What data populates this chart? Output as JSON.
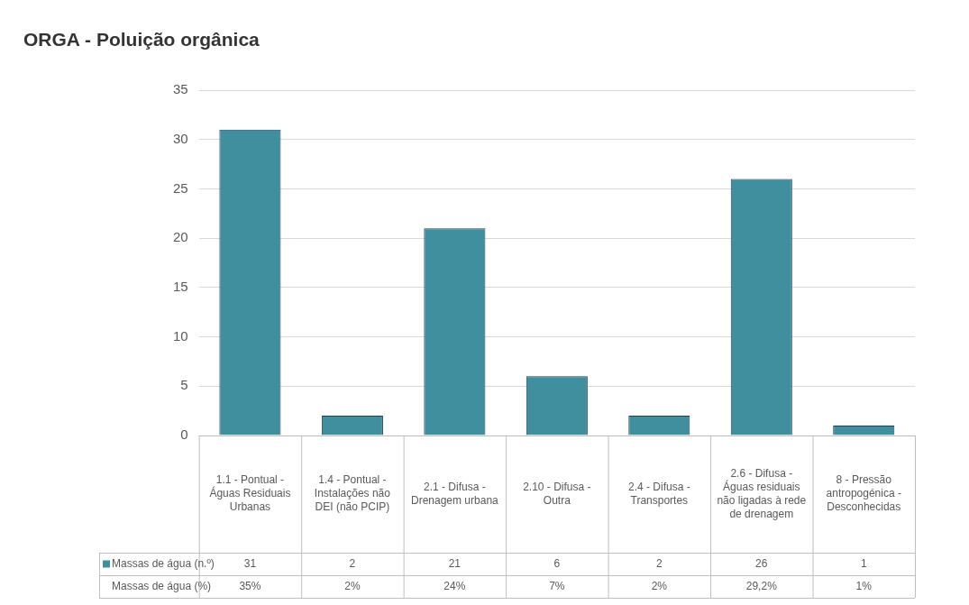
{
  "chart_data": {
    "type": "bar",
    "title": "ORGA - Poluição orgânica",
    "categories": [
      "1.1 - Pontual - Águas Residuais Urbanas",
      "1.4 - Pontual - Instalações não DEI (não PCIP)",
      "2.1 - Difusa - Drenagem urbana",
      "2.10 - Difusa - Outra",
      "2.4 - Difusa - Transportes",
      "2.6 - Difusa - Águas residuais não ligadas à rede de drenagem",
      "8 - Pressão antropogénica - Desconhecidas"
    ],
    "series": [
      {
        "name": "Massas de água (n.º)",
        "color": "#3f8f9f",
        "values": [
          31,
          2,
          21,
          6,
          2,
          26,
          1
        ]
      }
    ],
    "value_labels": [
      "35%",
      "2%",
      "24%",
      "7%",
      "2%",
      "29,2%",
      "1%"
    ],
    "annotations": [
      "Massas de água (%)"
    ],
    "data_labels": true,
    "ylim": [
      0,
      35
    ],
    "yticks": [
      0,
      5,
      10,
      15,
      20,
      25,
      30,
      35
    ],
    "grid": "y"
  }
}
